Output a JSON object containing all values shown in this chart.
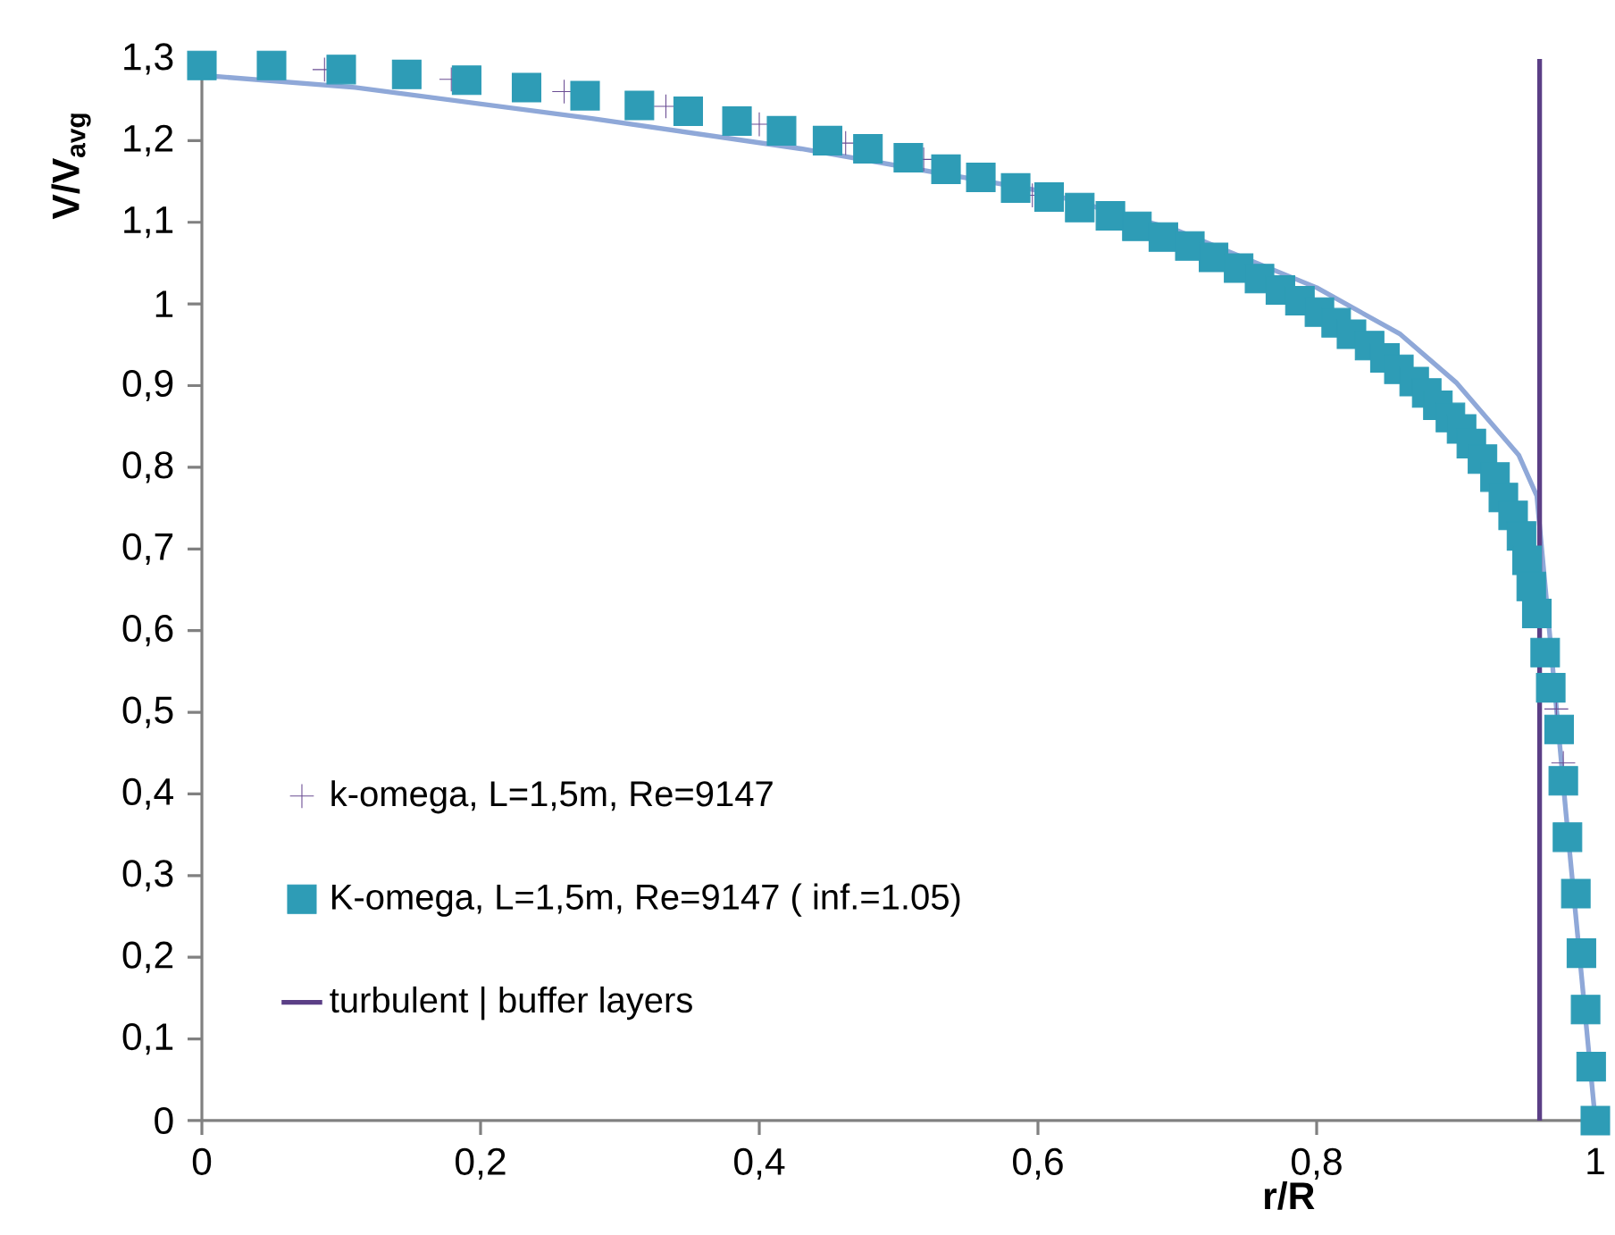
{
  "chart_data": {
    "type": "scatter",
    "xlabel": "r/R",
    "ylabel": "V/V$_{avg}$",
    "xlim": [
      0,
      1
    ],
    "ylim": [
      0,
      1.3
    ],
    "xticks": [
      0,
      {
        "value": 0.2,
        "label": "0,2"
      },
      {
        "value": 0.4,
        "label": "0,4"
      },
      {
        "value": 0.6,
        "label": "0,6"
      },
      {
        "value": 0.8,
        "label": "0,8"
      },
      1
    ],
    "yticks": [
      0,
      {
        "value": 0.1,
        "label": "0,1"
      },
      {
        "value": 0.2,
        "label": "0,2"
      },
      {
        "value": 0.3,
        "label": "0,3"
      },
      {
        "value": 0.4,
        "label": "0,4"
      },
      {
        "value": 0.5,
        "label": "0,5"
      },
      {
        "value": 0.6,
        "label": "0,6"
      },
      {
        "value": 0.7,
        "label": "0,7"
      },
      {
        "value": 0.8,
        "label": "0,8"
      },
      {
        "value": 0.9,
        "label": "0,9"
      },
      1,
      {
        "value": 1.1,
        "label": "1,1"
      },
      {
        "value": 1.2,
        "label": "1,2"
      },
      {
        "value": 1.3,
        "label": "1,3"
      }
    ],
    "legend": "bottom left",
    "series": [
      {
        "type": "line",
        "color": "#8fa8d8",
        "marker": "none",
        "line_style": "solid",
        "x": [
          0,
          0.11,
          0.28,
          0.43,
          0.6,
          0.7,
          0.8,
          0.86,
          0.9,
          0.945,
          0.958,
          0.967,
          0.979,
          1
        ],
        "values": [
          1.28,
          1.265,
          1.227,
          1.19,
          1.139,
          1.09,
          1.02,
          0.963,
          0.904,
          0.815,
          0.765,
          0.6,
          0.375,
          0
        ]
      },
      {
        "name": "k-omega, L=1,5m, Re=9147",
        "color": "#6a4c93",
        "marker": "cross",
        "x": [
          0.088,
          0.179,
          0.26,
          0.333,
          0.4,
          0.462,
          0.518,
          0.596,
          0.972,
          0.977
        ],
        "values": [
          1.287,
          1.275,
          1.26,
          1.242,
          1.22,
          1.197,
          1.177,
          1.133,
          0.504,
          0.438
        ]
      },
      {
        "name": "K-omega, L=1,5m, Re=9147 ( inf.=1.05)",
        "color": "#2e9cb6",
        "marker": "square",
        "x": [
          0,
          0.05,
          0.1,
          0.147,
          0.19,
          0.233,
          0.275,
          0.314,
          0.349,
          0.384,
          0.416,
          0.449,
          0.478,
          0.507,
          0.534,
          0.559,
          0.584,
          0.608,
          0.63,
          0.652,
          0.671,
          0.69,
          0.709,
          0.726,
          0.744,
          0.759,
          0.774,
          0.788,
          0.802,
          0.814,
          0.825,
          0.838,
          0.849,
          0.859,
          0.87,
          0.879,
          0.887,
          0.896,
          0.904,
          0.911,
          0.919,
          0.928,
          0.934,
          0.941,
          0.947,
          0.951,
          0.954,
          0.958,
          0.964,
          0.968,
          0.974,
          0.977,
          0.98,
          0.986,
          0.99,
          0.993,
          0.997,
          1
        ],
        "values": [
          1.292,
          1.292,
          1.287,
          1.281,
          1.274,
          1.265,
          1.255,
          1.243,
          1.236,
          1.224,
          1.212,
          1.2,
          1.19,
          1.179,
          1.165,
          1.155,
          1.142,
          1.131,
          1.118,
          1.108,
          1.095,
          1.082,
          1.071,
          1.057,
          1.044,
          1.031,
          1.017,
          1.004,
          0.99,
          0.977,
          0.963,
          0.949,
          0.934,
          0.92,
          0.905,
          0.891,
          0.876,
          0.861,
          0.847,
          0.829,
          0.81,
          0.788,
          0.763,
          0.741,
          0.716,
          0.686,
          0.654,
          0.621,
          0.573,
          0.53,
          0.479,
          0.416,
          0.347,
          0.278,
          0.205,
          0.136,
          0.066,
          0
        ]
      },
      {
        "type": "line",
        "name": "turbulent | buffer layers",
        "color": "#5b3f86",
        "marker": "none",
        "line_style": "solid",
        "x": [
          0.96,
          0.96
        ],
        "values": [
          0,
          1.3
        ]
      }
    ]
  }
}
